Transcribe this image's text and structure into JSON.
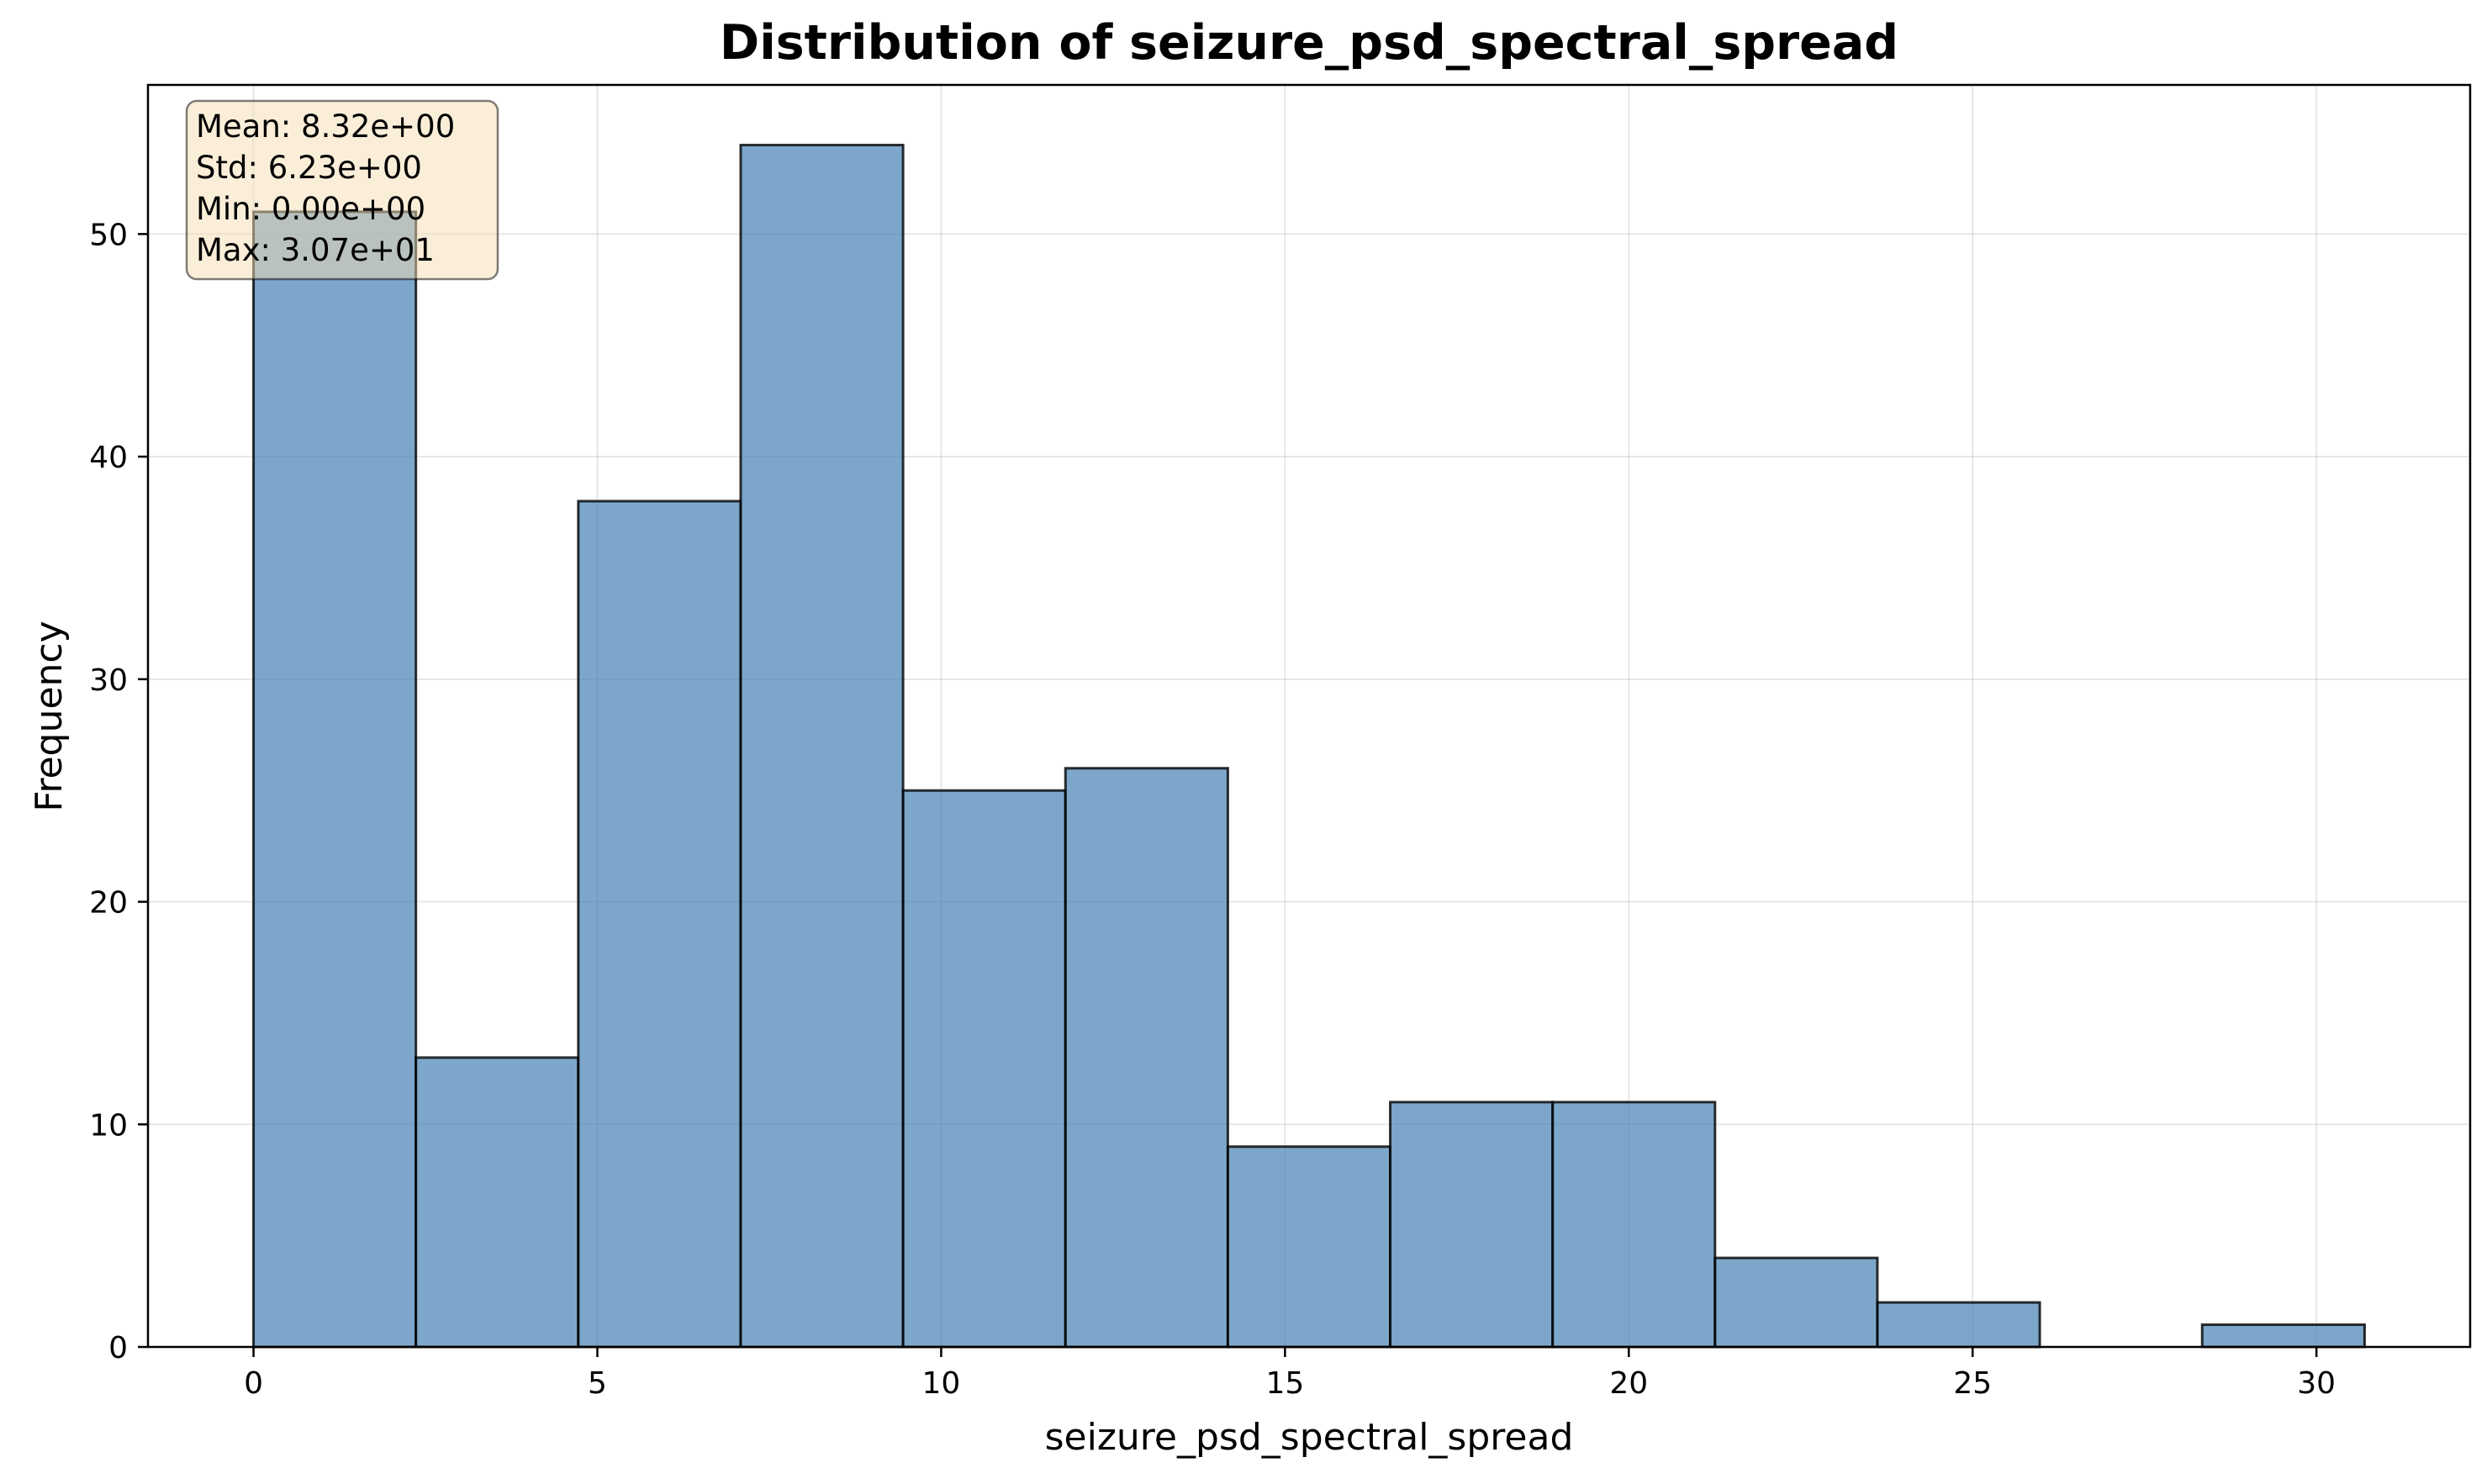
{
  "chart_data": {
    "type": "bar",
    "title": "Distribution of seizure_psd_spectral_spread",
    "xlabel": "seizure_psd_spectral_spread",
    "ylabel": "Frequency",
    "xlim": [
      -1.535,
      32.235
    ],
    "ylim": [
      0,
      56.7
    ],
    "x_ticks": [
      0,
      5,
      10,
      15,
      20,
      25,
      30
    ],
    "y_ticks": [
      0,
      10,
      20,
      30,
      40,
      50
    ],
    "grid": true,
    "bin_edges": [
      0,
      2.3615,
      4.723,
      7.0845,
      9.446,
      11.8075,
      14.169,
      16.5305,
      18.892,
      21.2535,
      23.615,
      25.9765,
      28.338,
      30.7
    ],
    "values": [
      51,
      13,
      38,
      54,
      25,
      26,
      9,
      11,
      11,
      4,
      2,
      0,
      1
    ],
    "bar_color": "#4682b4",
    "bar_alpha": 0.7,
    "edge_color": "#000000",
    "stats_box": {
      "lines": [
        "Mean: 8.32e+00",
        "Std: 6.23e+00",
        "Min: 0.00e+00",
        "Max: 3.07e+01"
      ],
      "placement": "top-left",
      "background": "#f5deb3"
    }
  }
}
